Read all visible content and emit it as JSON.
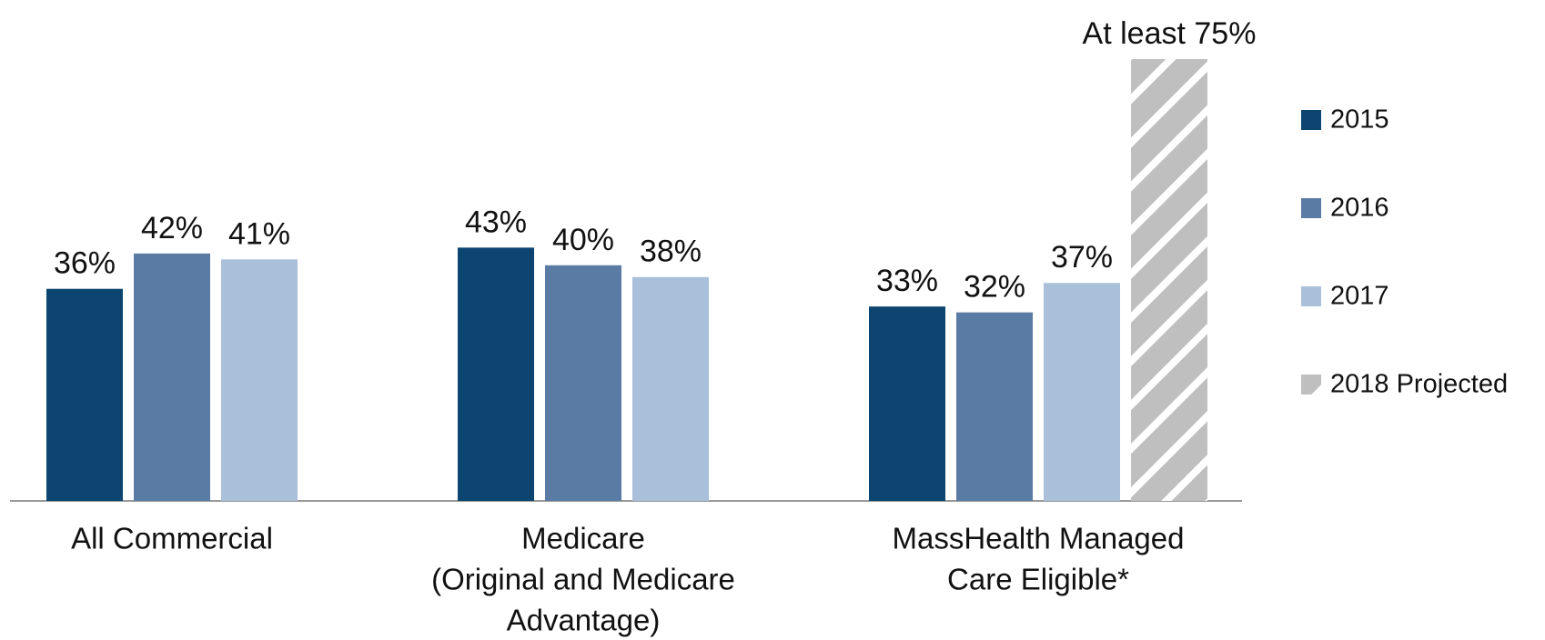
{
  "chart_data": {
    "type": "bar",
    "categories": [
      [
        "All Commercial"
      ],
      [
        "Medicare",
        "(Original and Medicare",
        "Advantage)"
      ],
      [
        "MassHealth Managed",
        "Care Eligible*"
      ]
    ],
    "series": [
      {
        "name": "2015",
        "color": "#0b4570",
        "values": [
          36,
          43,
          33
        ],
        "value_labels": [
          "36%",
          "43%",
          "33%"
        ]
      },
      {
        "name": "2016",
        "color": "#5a7ba3",
        "values": [
          42,
          40,
          32
        ],
        "value_labels": [
          "42%",
          "40%",
          "32%"
        ]
      },
      {
        "name": "2017",
        "color": "#a9bfda",
        "values": [
          41,
          38,
          37
        ],
        "value_labels": [
          "41%",
          "38%",
          "37%"
        ]
      },
      {
        "name": "2018 Projected",
        "color": "#bfbfbf",
        "hatch": true,
        "values": [
          null,
          null,
          75
        ],
        "value_labels": [
          null,
          null,
          "At least 75%"
        ]
      }
    ],
    "ylim": [
      0,
      75
    ],
    "legend": "right"
  }
}
